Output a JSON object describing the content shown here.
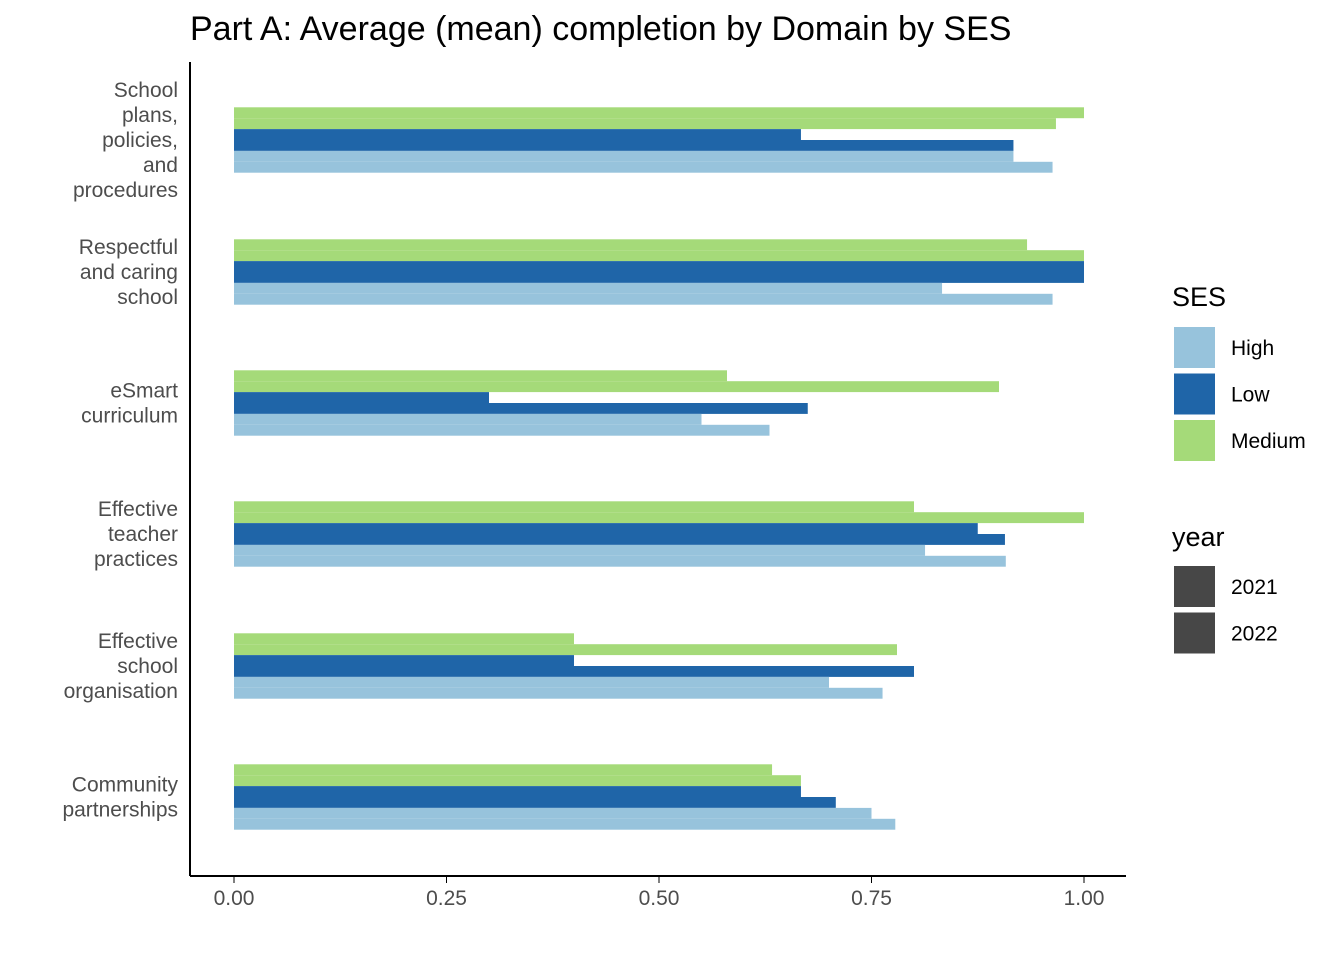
{
  "chart_data": {
    "type": "bar",
    "orientation": "horizontal",
    "title": "Part A: Average (mean) completion by Domain by SES",
    "xlabel": "",
    "ylabel": "",
    "xlim": [
      0,
      1
    ],
    "x_ticks": [
      "0.00",
      "0.25",
      "0.50",
      "0.75",
      "1.00"
    ],
    "x_tick_values": [
      0,
      0.25,
      0.5,
      0.75,
      1.0
    ],
    "grid": false,
    "legend_placement": "right",
    "categories": [
      {
        "lines": [
          "School",
          "plans,",
          "policies,",
          "and",
          "procedures"
        ]
      },
      {
        "lines": [
          "Respectful",
          "and caring",
          "school"
        ]
      },
      {
        "lines": [
          "eSmart",
          "curriculum"
        ]
      },
      {
        "lines": [
          "Effective",
          "teacher",
          "practices"
        ]
      },
      {
        "lines": [
          "Effective",
          "school",
          "organisation"
        ]
      },
      {
        "lines": [
          "Community",
          "partnerships"
        ]
      }
    ],
    "ses_legend": {
      "title": "SES",
      "items": [
        {
          "name": "High",
          "color": "#97c3dc"
        },
        {
          "name": "Low",
          "color": "#1f65a8"
        },
        {
          "name": "Medium",
          "color": "#a5da79"
        }
      ]
    },
    "year_legend": {
      "title": "year",
      "items": [
        {
          "name": "2021",
          "color": "#474747"
        },
        {
          "name": "2022",
          "color": "#474747"
        }
      ]
    },
    "series": [
      {
        "ses": "High",
        "year": "2021",
        "values": [
          0.917,
          0.833,
          0.55,
          0.813,
          0.7,
          0.75
        ]
      },
      {
        "ses": "High",
        "year": "2022",
        "values": [
          0.963,
          0.963,
          0.63,
          0.908,
          0.763,
          0.778
        ]
      },
      {
        "ses": "Low",
        "year": "2021",
        "values": [
          0.667,
          1.0,
          0.3,
          0.875,
          0.4,
          0.667
        ]
      },
      {
        "ses": "Low",
        "year": "2022",
        "values": [
          0.917,
          1.0,
          0.675,
          0.907,
          0.8,
          0.708
        ]
      },
      {
        "ses": "Medium",
        "year": "2021",
        "values": [
          1.0,
          0.933,
          0.58,
          0.8,
          0.4,
          0.633
        ]
      },
      {
        "ses": "Medium",
        "year": "2022",
        "values": [
          0.967,
          1.0,
          0.9,
          1.0,
          0.78,
          0.667
        ]
      }
    ]
  }
}
